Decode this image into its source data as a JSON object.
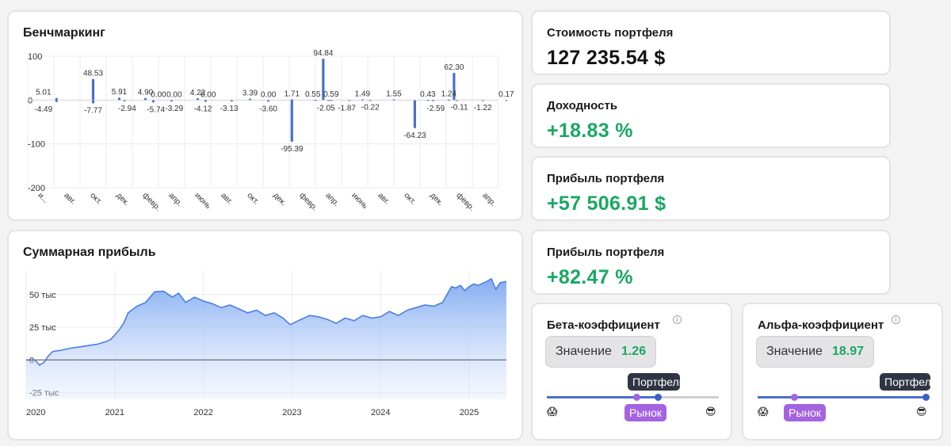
{
  "benchmark": {
    "title": "Бенчмаркинг",
    "chart_data": {
      "type": "bar",
      "y_ticks": [
        "100",
        "0",
        "-100",
        "-200"
      ],
      "ylim": [
        -200,
        100
      ],
      "x_tick_labels": [
        "и...",
        "авг.",
        "окт.",
        "дек.",
        "февр.",
        "апр.",
        "июнь",
        "авг.",
        "окт.",
        "дек.",
        "февр.",
        "апр.",
        "июнь",
        "авг.",
        "окт.",
        "дек.",
        "февр.",
        "апр."
      ],
      "data_labels": [
        "5.01",
        "-4.49",
        "48.53",
        "-7.77",
        "5.91",
        "-2.94",
        "4.90",
        "0.00",
        "-5.74",
        "0.00",
        "-3.29",
        "4.22",
        "0.00",
        "-4.12",
        "-3.13",
        "3.39",
        "0.00",
        "-3.60",
        "1.71",
        "-95.39",
        "94.84",
        "0.55",
        "0.59",
        "-2.05",
        "-1.87",
        "1.49",
        "-0.22",
        "1.55",
        "-64.23",
        "0.43",
        "-2.59",
        "62.30",
        "1.24",
        "-0.11",
        "-1.22",
        "0.17"
      ],
      "bars": [
        {
          "x": 0.6,
          "value": 5.01
        },
        {
          "x": 0.6,
          "value": -4.49
        },
        {
          "x": 2.0,
          "value": 48.53
        },
        {
          "x": 2.0,
          "value": -7.77
        },
        {
          "x": 3.0,
          "value": 5.91
        },
        {
          "x": 3.2,
          "value": -2.94
        },
        {
          "x": 4.0,
          "value": 4.9
        },
        {
          "x": 4.3,
          "value": -5.74
        },
        {
          "x": 5.0,
          "value": -3.29
        },
        {
          "x": 6.0,
          "value": 4.22
        },
        {
          "x": 6.3,
          "value": -4.12
        },
        {
          "x": 7.3,
          "value": -3.13
        },
        {
          "x": 8.0,
          "value": 3.39
        },
        {
          "x": 8.7,
          "value": -3.6
        },
        {
          "x": 9.6,
          "value": 1.71
        },
        {
          "x": 9.6,
          "value": -95.39
        },
        {
          "x": 10.8,
          "value": 94.84
        },
        {
          "x": 10.5,
          "value": 0.55
        },
        {
          "x": 11.1,
          "value": 0.59
        },
        {
          "x": 11.0,
          "value": -2.05
        },
        {
          "x": 11.8,
          "value": -1.87
        },
        {
          "x": 12.3,
          "value": 1.49
        },
        {
          "x": 12.6,
          "value": -0.22
        },
        {
          "x": 13.5,
          "value": 1.55
        },
        {
          "x": 14.3,
          "value": -64.23
        },
        {
          "x": 14.8,
          "value": 0.43
        },
        {
          "x": 15.0,
          "value": -2.59
        },
        {
          "x": 15.8,
          "value": 62.3
        },
        {
          "x": 15.6,
          "value": 1.24
        },
        {
          "x": 15.9,
          "value": -0.11
        },
        {
          "x": 16.9,
          "value": -1.22
        },
        {
          "x": 17.8,
          "value": 0.17
        }
      ]
    }
  },
  "cumulative": {
    "title": "Суммарная прибыль",
    "chart_data": {
      "type": "area",
      "y_ticks": [
        "50 тыс",
        "25 тыс",
        "0",
        "-25 тыс"
      ],
      "x_tick_labels": [
        "2020",
        "2021",
        "2022",
        "2023",
        "2024",
        "2025"
      ],
      "ylim": [
        -30000,
        68000
      ],
      "xlim": [
        2020.0,
        2025.42
      ],
      "points": [
        [
          2020.0,
          0
        ],
        [
          2020.1,
          0
        ],
        [
          2020.15,
          -4000
        ],
        [
          2020.2,
          -2000
        ],
        [
          2020.25,
          3000
        ],
        [
          2020.3,
          6500
        ],
        [
          2020.4,
          7500
        ],
        [
          2020.5,
          9000
        ],
        [
          2020.6,
          10000
        ],
        [
          2020.7,
          11000
        ],
        [
          2020.8,
          12000
        ],
        [
          2020.9,
          14000
        ],
        [
          2020.95,
          15500
        ],
        [
          2021.0,
          19000
        ],
        [
          2021.05,
          23000
        ],
        [
          2021.1,
          28000
        ],
        [
          2021.15,
          36000
        ],
        [
          2021.25,
          41000
        ],
        [
          2021.35,
          44000
        ],
        [
          2021.45,
          52000
        ],
        [
          2021.55,
          52500
        ],
        [
          2021.65,
          48000
        ],
        [
          2021.72,
          51000
        ],
        [
          2021.8,
          44000
        ],
        [
          2021.9,
          48000
        ],
        [
          2022.0,
          45000
        ],
        [
          2022.1,
          43000
        ],
        [
          2022.2,
          40000
        ],
        [
          2022.3,
          42000
        ],
        [
          2022.4,
          39000
        ],
        [
          2022.5,
          36000
        ],
        [
          2022.6,
          38000
        ],
        [
          2022.7,
          34000
        ],
        [
          2022.8,
          36000
        ],
        [
          2022.9,
          32000
        ],
        [
          2022.98,
          27000
        ],
        [
          2023.1,
          31000
        ],
        [
          2023.2,
          34000
        ],
        [
          2023.3,
          33000
        ],
        [
          2023.4,
          31000
        ],
        [
          2023.5,
          28000
        ],
        [
          2023.6,
          32000
        ],
        [
          2023.7,
          30000
        ],
        [
          2023.8,
          34000
        ],
        [
          2023.9,
          32000
        ],
        [
          2024.0,
          33000
        ],
        [
          2024.1,
          37000
        ],
        [
          2024.2,
          34000
        ],
        [
          2024.3,
          38000
        ],
        [
          2024.4,
          40000
        ],
        [
          2024.5,
          42000
        ],
        [
          2024.6,
          41000
        ],
        [
          2024.7,
          44000
        ],
        [
          2024.75,
          50000
        ],
        [
          2024.8,
          56000
        ],
        [
          2024.85,
          55000
        ],
        [
          2024.9,
          57000
        ],
        [
          2024.95,
          53000
        ],
        [
          2025.0,
          56000
        ],
        [
          2025.05,
          58000
        ],
        [
          2025.1,
          57000
        ],
        [
          2025.2,
          60000
        ],
        [
          2025.25,
          62000
        ],
        [
          2025.3,
          54000
        ],
        [
          2025.35,
          59000
        ],
        [
          2025.42,
          60000
        ]
      ]
    }
  },
  "portfolio_value": {
    "label": "Стоимость портфеля",
    "value": "127 235.54 $"
  },
  "return_pct": {
    "label": "Доходность",
    "value": "+18.83 %"
  },
  "profit_abs": {
    "label": "Прибыль портфеля",
    "value": "+57 506.91 $"
  },
  "profit_pct": {
    "label": "Прибыль портфеля",
    "value": "+82.47 %"
  },
  "beta": {
    "title": "Бета-коэффициент",
    "value_label": "Значение",
    "value": "1.26",
    "portfolio_tag": "Портфель",
    "market_tag": "Рынок",
    "left_emoji": "😱",
    "right_emoji": "😎"
  },
  "alpha": {
    "title": "Альфа-коэффициент",
    "value_label": "Значение",
    "value": "18.97",
    "portfolio_tag": "Портфель",
    "market_tag": "Рынок",
    "left_emoji": "😱",
    "right_emoji": "😎"
  },
  "info_symbol": "i",
  "colors": {
    "positive": "#1aa863",
    "bar": "#4a6fcf",
    "area_line": "#4a7fe0",
    "portfolio_dot": "#3b5fc4",
    "market_dot": "#a463e0"
  }
}
